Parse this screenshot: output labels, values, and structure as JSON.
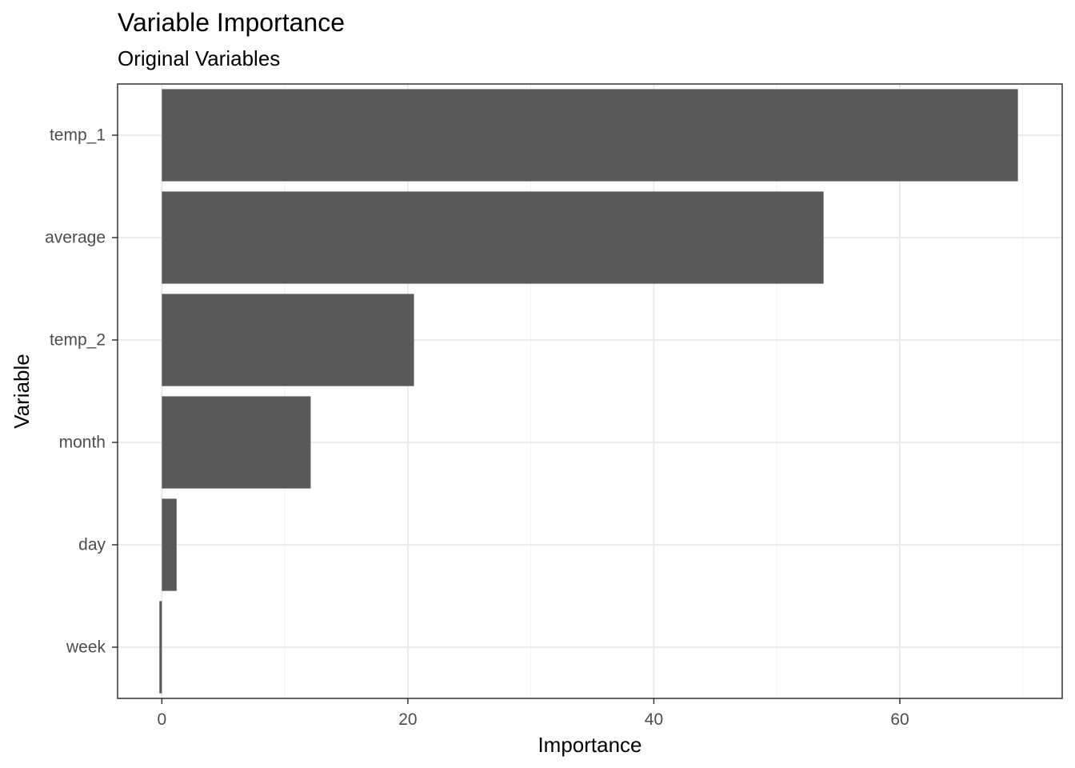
{
  "chart_data": {
    "type": "bar",
    "orientation": "horizontal",
    "title": "Variable Importance",
    "subtitle": "Original Variables",
    "xlabel": "Importance",
    "ylabel": "Variable",
    "categories": [
      "temp_1",
      "average",
      "temp_2",
      "month",
      "day",
      "week"
    ],
    "values": [
      69.6,
      53.8,
      20.5,
      12.1,
      1.2,
      -0.2
    ],
    "xlim": [
      -3.6,
      73.2
    ],
    "x_ticks": [
      0,
      20,
      40,
      60
    ],
    "x_tick_labels": [
      "0",
      "20",
      "40",
      "60"
    ],
    "grid": true,
    "legend": "none",
    "colors": {
      "bar": "#595959",
      "grid_major": "#ebebeb",
      "grid_minor": "#f2f2f2",
      "panel_border": "#333333",
      "axis_text": "#4d4d4d",
      "tick": "#333333"
    }
  }
}
